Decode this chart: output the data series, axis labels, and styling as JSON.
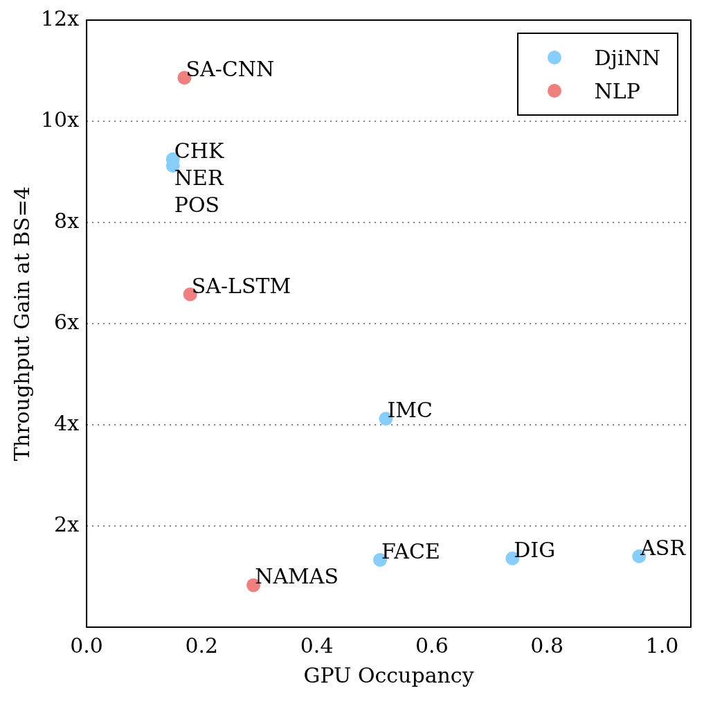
{
  "chart_data": {
    "type": "scatter",
    "xlabel": "GPU Occupancy",
    "ylabel": "Throughput Gain at BS=4",
    "xlim": [
      0,
      1.05
    ],
    "xticks": [
      {
        "value": 0,
        "label": "0.0"
      },
      {
        "value": 0.2,
        "label": "0.2"
      },
      {
        "value": 0.4,
        "label": "0.4"
      },
      {
        "value": 0.6,
        "label": "0.6"
      },
      {
        "value": 0.8,
        "label": "0.8"
      },
      {
        "value": 1,
        "label": "1.0"
      }
    ],
    "ylim": [
      0,
      12
    ],
    "yticks": [
      {
        "value": 2,
        "label": "2x"
      },
      {
        "value": 4,
        "label": "4x"
      },
      {
        "value": 6,
        "label": "6x"
      },
      {
        "value": 8,
        "label": "8x"
      },
      {
        "value": 10,
        "label": "10x"
      },
      {
        "value": 12,
        "label": "12x"
      }
    ],
    "grid": "y",
    "legend": "top right",
    "marker": "circle",
    "series": [
      {
        "name": "DjiNN",
        "color": "#87cefa",
        "x": [
          0.15,
          0.15,
          0.52,
          0.51,
          0.74,
          0.96
        ],
        "values": [
          9.25,
          9.12,
          4.12,
          1.33,
          1.36,
          1.4
        ]
      },
      {
        "name": "NLP",
        "color": "#f08080",
        "x": [
          0.17,
          0.18,
          0.29
        ],
        "values": [
          10.86,
          6.58,
          0.83
        ]
      }
    ],
    "annotations": [
      {
        "text": "SA-CNN",
        "x": 0.17,
        "y": 10.86
      },
      {
        "text": "CHK",
        "x": 0.15,
        "y": 9.25
      },
      {
        "text": "NER",
        "x": 0.15,
        "y": 9.12
      },
      {
        "text": "POS",
        "x": 0.15,
        "y": 9.12
      },
      {
        "text": "SA-LSTM",
        "x": 0.18,
        "y": 6.58
      },
      {
        "text": "IMC",
        "x": 0.52,
        "y": 4.12
      },
      {
        "text": "FACE",
        "x": 0.51,
        "y": 1.33
      },
      {
        "text": "DIG",
        "x": 0.74,
        "y": 1.36
      },
      {
        "text": "ASR",
        "x": 0.96,
        "y": 1.4
      },
      {
        "text": "NAMAS",
        "x": 0.29,
        "y": 0.83
      }
    ]
  }
}
